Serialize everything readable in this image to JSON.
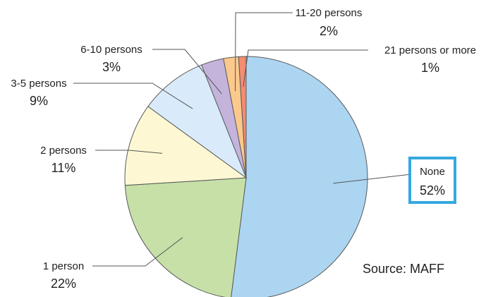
{
  "chart_data": {
    "type": "pie",
    "slices": [
      {
        "label": "None",
        "percent_label": "52%",
        "value": 52,
        "color": "#acd5f2"
      },
      {
        "label": "1 person",
        "percent_label": "22%",
        "value": 22,
        "color": "#c6e0a8"
      },
      {
        "label": "2 persons",
        "percent_label": "11%",
        "value": 11,
        "color": "#fdf8d3"
      },
      {
        "label": "3-5 persons",
        "percent_label": "9%",
        "value": 9,
        "color": "#d9ebfa"
      },
      {
        "label": "6-10 persons",
        "percent_label": "3%",
        "value": 3,
        "color": "#c4b4dc"
      },
      {
        "label": "11-20 persons",
        "percent_label": "2%",
        "value": 2,
        "color": "#fbc98c"
      },
      {
        "label": "21 persons or more",
        "percent_label": "1%",
        "value": 1,
        "color": "#f48b72"
      }
    ],
    "highlighted_slice": "None",
    "highlight_color": "#35a8e0"
  },
  "source": "Source: MAFF"
}
